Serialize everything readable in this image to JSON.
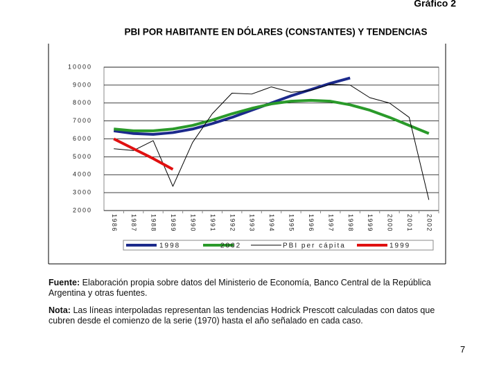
{
  "chart_data": {
    "type": "line",
    "label": "Gráfico 2",
    "title": "PBI POR HABITANTE EN DÓLARES (CONSTANTES) Y TENDENCIAS",
    "categories": [
      "1986",
      "1987",
      "1988",
      "1989",
      "1990",
      "1991",
      "1992",
      "1993",
      "1994",
      "1995",
      "1996",
      "1997",
      "1998",
      "1999",
      "2000",
      "2001",
      "2002"
    ],
    "series": [
      {
        "name": "1998",
        "color": "#1c2a8c",
        "line_width": 4,
        "values": [
          6450,
          6300,
          6250,
          6350,
          6550,
          6850,
          7200,
          7600,
          8000,
          8400,
          8750,
          9100,
          9400,
          null,
          null,
          null,
          null
        ]
      },
      {
        "name": "2002",
        "color": "#2a9a2a",
        "line_width": 4,
        "values": [
          6550,
          6450,
          6450,
          6550,
          6750,
          7050,
          7400,
          7700,
          7950,
          8100,
          8150,
          8100,
          7900,
          7600,
          7200,
          6750,
          6300
        ]
      },
      {
        "name": "PBI per cápita",
        "color": "#000000",
        "line_width": 1,
        "values": [
          5450,
          5350,
          5900,
          3350,
          5800,
          7400,
          8550,
          8500,
          8900,
          8600,
          8700,
          9050,
          9000,
          8300,
          8000,
          7200,
          2600
        ]
      },
      {
        "name": "1999",
        "color": "#e01010",
        "line_width": 4,
        "values": [
          6000,
          5450,
          4900,
          4300,
          null,
          null,
          null,
          null,
          null,
          null,
          null,
          null,
          null,
          null,
          null,
          null,
          null
        ]
      }
    ],
    "ylim": [
      2000,
      10000
    ],
    "yticks": [
      2000,
      3000,
      4000,
      5000,
      6000,
      7000,
      8000,
      9000,
      10000
    ],
    "grid": true
  },
  "notes": {
    "source": {
      "label": "Fuente:",
      "text": "Elaboración propia sobre datos del Ministerio de Economía, Banco Central de la República Argentina y otras fuentes."
    },
    "note": {
      "label": "Nota:",
      "text": "Las líneas  interpoladas representan las tendencias Hodrick Prescott calculadas con datos que cubren desde el comienzo de la serie (1970) hasta el año señalado en cada caso."
    }
  },
  "page_number": "7"
}
